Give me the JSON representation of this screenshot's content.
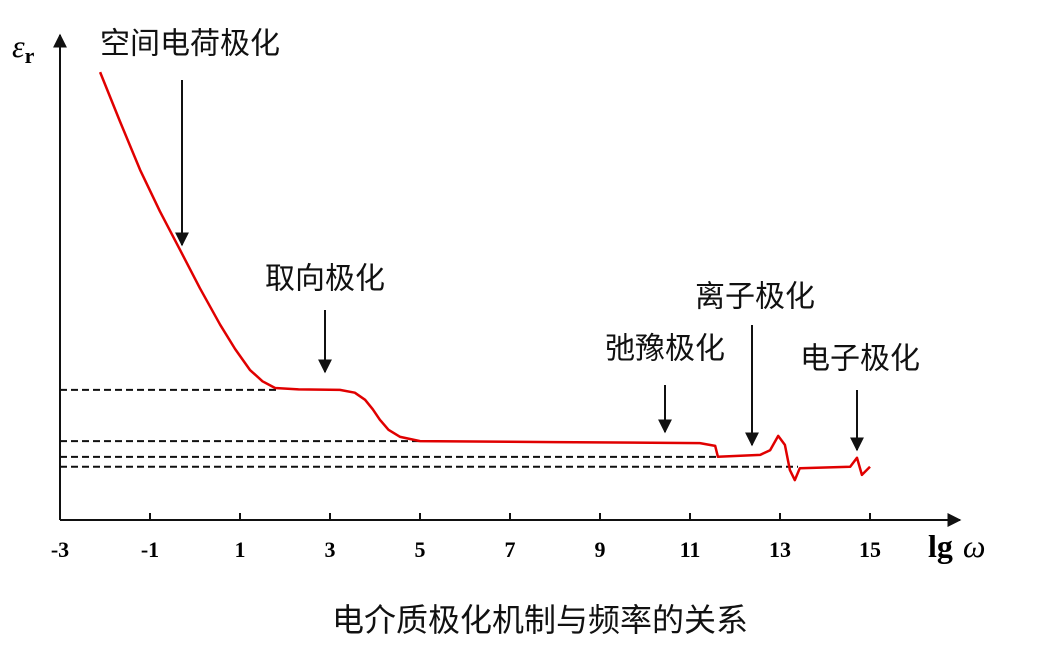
{
  "chart_data": {
    "type": "line",
    "caption": "电介质极化机制与频率的关系",
    "ylabel": {
      "symbol": "ε",
      "subscript": "r"
    },
    "xlabel": {
      "prefix": "lg",
      "symbol": "ω"
    },
    "xlim": [
      -3,
      17
    ],
    "ylim": [
      0,
      10
    ],
    "xticks": [
      -3,
      -1,
      1,
      3,
      5,
      7,
      9,
      11,
      13,
      15
    ],
    "series": [
      {
        "color": "#e00000",
        "x": [
          -2.11,
          -1.67,
          -1.22,
          -0.78,
          -0.33,
          0.11,
          0.56,
          0.89,
          1.22,
          1.5,
          1.78,
          2.3,
          3.22,
          3.55,
          3.78,
          3.95,
          4.11,
          4.3,
          4.56,
          5,
          8,
          11.22,
          11.56,
          11.62,
          12.56,
          12.78,
          12.96,
          13.11,
          13.22,
          13.33,
          13.44,
          14.56,
          14.71,
          14.82,
          15
        ],
        "y": [
          9.43,
          8.4,
          7.37,
          6.5,
          5.68,
          4.88,
          4.11,
          3.6,
          3.16,
          2.92,
          2.78,
          2.75,
          2.74,
          2.68,
          2.53,
          2.33,
          2.11,
          1.9,
          1.75,
          1.66,
          1.64,
          1.62,
          1.56,
          1.33,
          1.37,
          1.47,
          1.77,
          1.58,
          1.05,
          0.84,
          1.09,
          1.12,
          1.31,
          0.95,
          1.12
        ]
      }
    ],
    "reference_lines": [
      {
        "y": 2.74,
        "x_end": 1.8
      },
      {
        "y": 1.66,
        "x_end": 5
      },
      {
        "y": 1.33,
        "x_end": 11.6
      },
      {
        "y": 1.12,
        "x_end": 13.4
      }
    ],
    "annotations": [
      {
        "text": "空间电荷极化"
      },
      {
        "text": "取向极化"
      },
      {
        "text": "弛豫极化"
      },
      {
        "text": "离子极化"
      },
      {
        "text": "电子极化"
      }
    ]
  }
}
